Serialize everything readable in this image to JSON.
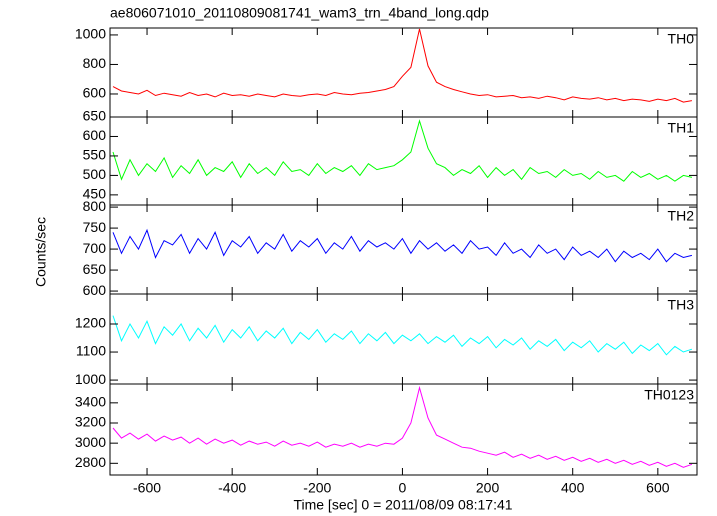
{
  "title": "ae806071010_20110809081741_wam3_trn_4band_long.qdp",
  "xlabel": "Time [sec] 0 = 2011/08/09 08:17:41",
  "ylabel": "Counts/sec",
  "xlim": [
    -687,
    692
  ],
  "xticks": [
    -600,
    -400,
    -200,
    0,
    200,
    400,
    600
  ],
  "x": [
    -680,
    -660,
    -640,
    -620,
    -600,
    -580,
    -560,
    -540,
    -520,
    -500,
    -480,
    -460,
    -440,
    -420,
    -400,
    -380,
    -360,
    -340,
    -320,
    -300,
    -280,
    -260,
    -240,
    -220,
    -200,
    -180,
    -160,
    -140,
    -120,
    -100,
    -80,
    -60,
    -40,
    -20,
    0,
    20,
    40,
    60,
    80,
    100,
    120,
    140,
    160,
    180,
    200,
    220,
    240,
    260,
    280,
    300,
    320,
    340,
    360,
    380,
    400,
    420,
    440,
    460,
    480,
    500,
    520,
    540,
    560,
    580,
    600,
    620,
    640,
    660,
    680
  ],
  "chart_data": [
    {
      "type": "line",
      "ylim": [
        444,
        1047
      ],
      "yticks": [
        600,
        800,
        1000
      ],
      "series": [
        {
          "name": "TH0",
          "color": "#ff0000",
          "values": [
            650,
            620,
            610,
            600,
            625,
            590,
            605,
            595,
            585,
            610,
            590,
            600,
            580,
            605,
            590,
            595,
            585,
            600,
            590,
            580,
            600,
            590,
            585,
            595,
            600,
            590,
            610,
            600,
            595,
            605,
            610,
            620,
            630,
            650,
            720,
            780,
            1040,
            790,
            680,
            650,
            630,
            615,
            600,
            590,
            595,
            580,
            585,
            590,
            575,
            580,
            570,
            585,
            575,
            560,
            580,
            570,
            565,
            575,
            560,
            570,
            555,
            565,
            560,
            550,
            565,
            555,
            570,
            545,
            555
          ]
        }
      ]
    },
    {
      "type": "line",
      "ylim": [
        424,
        650
      ],
      "yticks": [
        450,
        500,
        550,
        600,
        650
      ],
      "series": [
        {
          "name": "TH1",
          "color": "#00ff00",
          "values": [
            560,
            490,
            540,
            500,
            530,
            510,
            545,
            495,
            525,
            505,
            540,
            500,
            520,
            510,
            535,
            495,
            530,
            505,
            520,
            500,
            535,
            510,
            515,
            500,
            530,
            505,
            520,
            510,
            525,
            500,
            530,
            515,
            520,
            525,
            540,
            560,
            640,
            570,
            530,
            520,
            500,
            515,
            505,
            525,
            495,
            520,
            500,
            515,
            490,
            520,
            505,
            510,
            495,
            515,
            500,
            505,
            490,
            510,
            495,
            500,
            485,
            510,
            495,
            505,
            490,
            500,
            485,
            500,
            495
          ]
        }
      ]
    },
    {
      "type": "line",
      "ylim": [
        593,
        805
      ],
      "yticks": [
        600,
        650,
        700,
        750,
        800
      ],
      "series": [
        {
          "name": "TH2",
          "color": "#0000ff",
          "values": [
            740,
            690,
            730,
            700,
            745,
            680,
            720,
            710,
            735,
            690,
            725,
            700,
            740,
            685,
            720,
            705,
            730,
            690,
            715,
            700,
            735,
            695,
            720,
            705,
            725,
            690,
            715,
            700,
            730,
            695,
            720,
            705,
            715,
            700,
            725,
            690,
            720,
            700,
            715,
            695,
            710,
            690,
            720,
            700,
            705,
            685,
            715,
            690,
            700,
            680,
            710,
            690,
            700,
            675,
            705,
            685,
            695,
            680,
            700,
            670,
            695,
            680,
            690,
            675,
            700,
            670,
            690,
            680,
            685
          ]
        }
      ]
    },
    {
      "type": "line",
      "ylim": [
        986,
        1307
      ],
      "yticks": [
        1000,
        1100,
        1200
      ],
      "series": [
        {
          "name": "TH3",
          "color": "#00ffff",
          "values": [
            1230,
            1140,
            1200,
            1150,
            1210,
            1130,
            1190,
            1160,
            1200,
            1140,
            1185,
            1150,
            1195,
            1135,
            1180,
            1150,
            1190,
            1140,
            1175,
            1150,
            1185,
            1130,
            1170,
            1145,
            1180,
            1135,
            1165,
            1145,
            1175,
            1130,
            1165,
            1140,
            1170,
            1130,
            1160,
            1140,
            1165,
            1130,
            1155,
            1135,
            1160,
            1120,
            1150,
            1130,
            1155,
            1115,
            1145,
            1125,
            1150,
            1110,
            1140,
            1120,
            1145,
            1105,
            1135,
            1115,
            1140,
            1100,
            1130,
            1110,
            1135,
            1095,
            1125,
            1105,
            1130,
            1090,
            1120,
            1100,
            1110
          ]
        }
      ]
    },
    {
      "type": "line",
      "ylim": [
        2684,
        3587
      ],
      "yticks": [
        2800,
        3000,
        3200,
        3400
      ],
      "series": [
        {
          "name": "TH0123",
          "color": "#ff00ff",
          "values": [
            3150,
            3050,
            3100,
            3040,
            3090,
            3020,
            3070,
            3030,
            3060,
            3000,
            3050,
            2990,
            3040,
            3000,
            3030,
            2980,
            3020,
            2990,
            3010,
            2970,
            3020,
            2980,
            3000,
            2970,
            3010,
            2960,
            2990,
            2970,
            3000,
            2960,
            2990,
            2970,
            3000,
            2990,
            3050,
            3200,
            3550,
            3250,
            3080,
            3040,
            3000,
            2960,
            2950,
            2920,
            2900,
            2880,
            2910,
            2860,
            2890,
            2850,
            2880,
            2840,
            2870,
            2830,
            2860,
            2820,
            2850,
            2810,
            2840,
            2800,
            2830,
            2790,
            2820,
            2780,
            2810,
            2770,
            2800,
            2760,
            2790
          ]
        }
      ]
    }
  ]
}
